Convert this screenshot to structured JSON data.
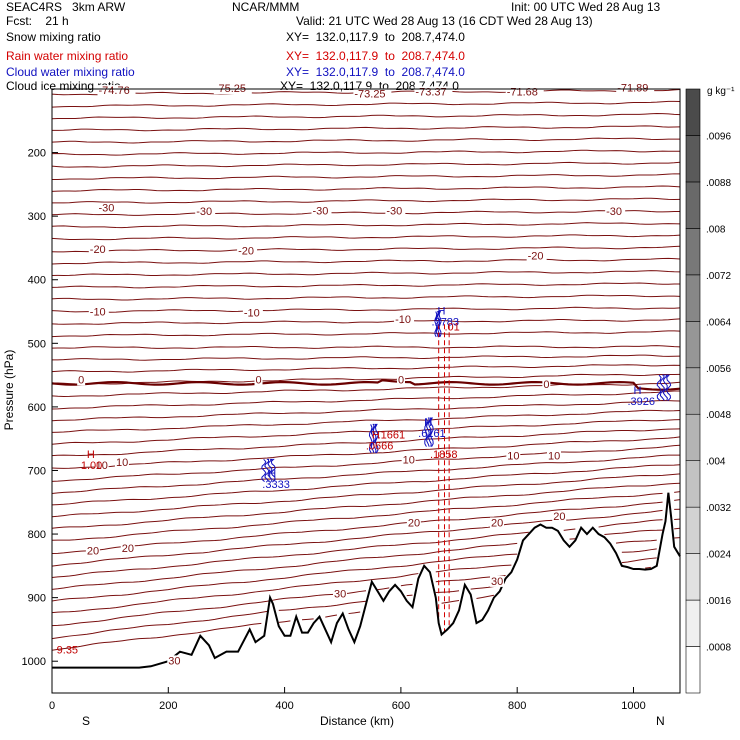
{
  "header": {
    "model": "SEAC4RS   3km ARW",
    "center": "NCAR/MMM",
    "init": "Init: 00 UTC Wed 28 Aug 13",
    "fcst_label": "Fcst:    21 h",
    "valid": "Valid: 21 UTC Wed 28 Aug 13 (16 CDT Wed 28 Aug 13)",
    "fields": [
      {
        "name": "Snow mixing ratio",
        "xy": "XY=  132.0,117.9  to  208.7,474.0",
        "color": "#000000"
      },
      {
        "name": "Rain water mixing ratio",
        "xy": "XY=  132.0,117.9  to  208.7,474.0",
        "color": "#d40000"
      },
      {
        "name": "Cloud water mixing ratio",
        "xy": "XY=  132.0,117.9  to  208.7,474.0",
        "color": "#1010c0"
      },
      {
        "name": "Cloud ice mixing ratio",
        "xy": "XY=  132.0,117.9  to  208.7,474.0",
        "color": "#000000"
      }
    ]
  },
  "chart_data": {
    "type": "cross-section",
    "xlabel": "Distance (km)",
    "ylabel": "Pressure (hPa)",
    "xlim": [
      0,
      1080
    ],
    "ylim": [
      1050,
      100
    ],
    "x_ticks": [
      0,
      200,
      400,
      600,
      800,
      1000
    ],
    "y_ticks": [
      200,
      300,
      400,
      500,
      600,
      700,
      800,
      900,
      1000
    ],
    "left_end_label": "S",
    "right_end_label": "N",
    "colorbar": {
      "unit": "g kg⁻¹",
      "ticks": [
        ".0008",
        ".0016",
        ".0024",
        ".0032",
        ".004",
        ".0048",
        ".0056",
        ".0064",
        ".0072",
        ".008",
        ".0088",
        ".0096"
      ],
      "colors": [
        "#ffffff",
        "#f0f0f0",
        "#e1e1e1",
        "#d2d2d2",
        "#c3c3c3",
        "#b4b4b4",
        "#a5a5a5",
        "#969696",
        "#878787",
        "#787878",
        "#696969",
        "#5a5a5a",
        "#4b4b4b"
      ]
    },
    "temperature_contour_labels": [
      {
        "text": "-74.76",
        "x": 80,
        "p": 108
      },
      {
        "text": "-75.25",
        "x": 280,
        "p": 105
      },
      {
        "text": "-73.25",
        "x": 520,
        "p": 113
      },
      {
        "text": "-73.37",
        "x": 625,
        "p": 110
      },
      {
        "text": "-71.68",
        "x": 782,
        "p": 110
      },
      {
        "text": "-71.89",
        "x": 972,
        "p": 104
      },
      {
        "text": "-30",
        "x": 80,
        "p": 293
      },
      {
        "text": "-30",
        "x": 248,
        "p": 298
      },
      {
        "text": "-30",
        "x": 448,
        "p": 297
      },
      {
        "text": "-30",
        "x": 575,
        "p": 297
      },
      {
        "text": "-30",
        "x": 953,
        "p": 298
      },
      {
        "text": "-20",
        "x": 65,
        "p": 358
      },
      {
        "text": "-20",
        "x": 320,
        "p": 360
      },
      {
        "text": "-20",
        "x": 818,
        "p": 368
      },
      {
        "text": "-10",
        "x": 65,
        "p": 456
      },
      {
        "text": "-10",
        "x": 330,
        "p": 458
      },
      {
        "text": "-10",
        "x": 590,
        "p": 468
      },
      {
        "text": "0",
        "x": 45,
        "p": 563
      },
      {
        "text": "0",
        "x": 350,
        "p": 563
      },
      {
        "text": "0",
        "x": 595,
        "p": 563
      },
      {
        "text": "0",
        "x": 845,
        "p": 570
      },
      {
        "text": "10",
        "x": 75,
        "p": 698
      },
      {
        "text": "10",
        "x": 110,
        "p": 693
      },
      {
        "text": "10",
        "x": 603,
        "p": 689
      },
      {
        "text": "10",
        "x": 783,
        "p": 683
      },
      {
        "text": "10",
        "x": 853,
        "p": 683
      },
      {
        "text": "20",
        "x": 60,
        "p": 832
      },
      {
        "text": "20",
        "x": 120,
        "p": 828
      },
      {
        "text": "20",
        "x": 612,
        "p": 788
      },
      {
        "text": "20",
        "x": 755,
        "p": 788
      },
      {
        "text": "20",
        "x": 862,
        "p": 778
      },
      {
        "text": "30",
        "x": 200,
        "p": 1005
      },
      {
        "text": "30",
        "x": 485,
        "p": 900
      },
      {
        "text": "30",
        "x": 755,
        "p": 880
      }
    ],
    "max_markers": [
      {
        "h": "H",
        "value": "1.00",
        "x": 60,
        "p": 680,
        "color": "#c00000"
      },
      {
        "h": "H",
        "value": ".3333",
        "x": 372,
        "p": 710,
        "color": "#1010c0"
      },
      {
        "h": "H",
        "value": ".0666",
        "x": 550,
        "p": 650,
        "color": "#c00000"
      },
      {
        "h": "H",
        "value": ".6161",
        "x": 640,
        "p": 630,
        "color": "#1010c0"
      },
      {
        "h": "H",
        "value": ".2783",
        "x": 663,
        "p": 455,
        "color": "#1010c0"
      },
      {
        "h": "H",
        "value": ".3926",
        "x": 1000,
        "p": 580,
        "color": "#1010c0"
      }
    ],
    "other_labels": [
      {
        "text": ".1858",
        "x": 650,
        "p": 680,
        "color": "#c00000"
      },
      {
        "text": ".1661",
        "x": 560,
        "p": 650,
        "color": "#c00000"
      },
      {
        "text": ".01",
        "x": 675,
        "p": 480,
        "color": "#c00000"
      },
      {
        "text": "9.35",
        "x": 8,
        "p": 988,
        "color": "#c00000"
      }
    ],
    "terrain": {
      "x": [
        0,
        40,
        100,
        150,
        170,
        200,
        220,
        240,
        255,
        270,
        280,
        300,
        320,
        340,
        350,
        365,
        375,
        380,
        390,
        400,
        410,
        420,
        430,
        440,
        450,
        460,
        470,
        480,
        490,
        500,
        510,
        520,
        530,
        540,
        550,
        560,
        570,
        580,
        590,
        600,
        610,
        620,
        630,
        640,
        650,
        660,
        665,
        670,
        680,
        690,
        700,
        710,
        720,
        730,
        740,
        750,
        760,
        770,
        780,
        790,
        800,
        810,
        820,
        830,
        840,
        850,
        860,
        870,
        880,
        890,
        900,
        910,
        920,
        930,
        940,
        950,
        960,
        970,
        980,
        990,
        1000,
        1010,
        1020,
        1030,
        1040,
        1050,
        1055,
        1060,
        1065,
        1070,
        1080
      ],
      "p": [
        1010,
        1010,
        1010,
        1010,
        1008,
        1000,
        985,
        990,
        960,
        975,
        995,
        985,
        985,
        950,
        970,
        960,
        900,
        910,
        945,
        960,
        960,
        930,
        955,
        955,
        940,
        930,
        950,
        970,
        940,
        925,
        950,
        970,
        945,
        910,
        875,
        890,
        905,
        890,
        880,
        890,
        905,
        915,
        870,
        850,
        860,
        900,
        940,
        958,
        950,
        940,
        920,
        880,
        895,
        940,
        935,
        920,
        900,
        890,
        870,
        860,
        840,
        810,
        800,
        790,
        785,
        790,
        790,
        795,
        810,
        820,
        810,
        790,
        800,
        790,
        800,
        805,
        815,
        830,
        850,
        852,
        855,
        855,
        856,
        855,
        850,
        800,
        780,
        735,
        775,
        820,
        835
      ]
    },
    "dashed_lines_x": [
      665,
      675,
      683
    ]
  }
}
